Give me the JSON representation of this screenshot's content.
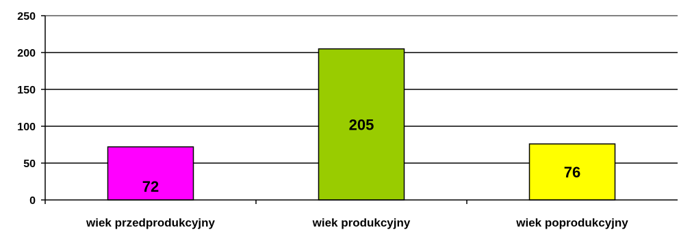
{
  "chart_data": {
    "type": "bar",
    "categories": [
      "wiek przedprodukcyjny",
      "wiek produkcyjny",
      "wiek poprodukcyjny"
    ],
    "values": [
      72,
      205,
      76
    ],
    "data_labels": [
      "72",
      "205",
      "76"
    ],
    "bar_colors": [
      "#ff00ff",
      "#99cc00",
      "#ffff00"
    ],
    "title": "",
    "xlabel": "",
    "ylabel": "",
    "ylim": [
      0,
      250
    ],
    "yticks": [
      0,
      50,
      100,
      150,
      200,
      250
    ],
    "grid": true,
    "legend": "none"
  }
}
